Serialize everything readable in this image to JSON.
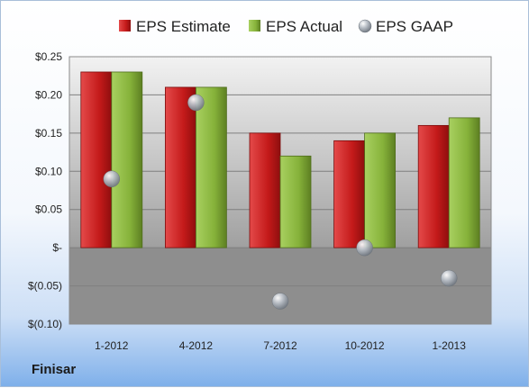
{
  "company": "Finisar",
  "chart_data": {
    "type": "bar",
    "categories": [
      "1-2012",
      "4-2012",
      "7-2012",
      "10-2012",
      "1-2013"
    ],
    "series": [
      {
        "name": "EPS Estimate",
        "values": [
          0.23,
          0.21,
          0.15,
          0.14,
          0.16
        ],
        "color": "#cc1f1f"
      },
      {
        "name": "EPS Actual",
        "values": [
          0.23,
          0.21,
          0.12,
          0.15,
          0.17
        ],
        "color": "#8dbb3c"
      },
      {
        "name": "EPS GAAP",
        "values": [
          0.09,
          0.19,
          -0.07,
          0.0,
          -0.04
        ],
        "color": "#9aa3ad",
        "mark": "sphere"
      }
    ],
    "yticks": [
      0.25,
      0.2,
      0.15,
      0.1,
      0.05,
      0,
      -0.05,
      -0.1
    ],
    "ytick_labels": [
      "$0.25",
      "$0.20",
      "$0.15",
      "$0.10",
      "$0.05",
      "$-",
      "$(0.05)",
      "$(0.10)"
    ],
    "ylim": [
      -0.1,
      0.25
    ],
    "grid": true,
    "legend": "top"
  }
}
